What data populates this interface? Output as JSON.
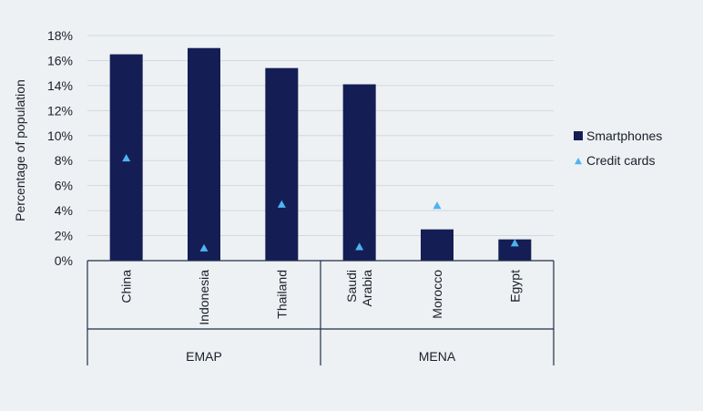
{
  "chart_data": {
    "type": "bar",
    "ylabel": "Percentage of population",
    "ylim": [
      0,
      18
    ],
    "yticks": [
      "0%",
      "2%",
      "4%",
      "6%",
      "8%",
      "10%",
      "12%",
      "14%",
      "16%",
      "18%"
    ],
    "grid": true,
    "legend_position": "right",
    "categories": [
      {
        "label": "China",
        "group": "EMAP"
      },
      {
        "label": "Indonesia",
        "group": "EMAP"
      },
      {
        "label": "Thailand",
        "group": "EMAP"
      },
      {
        "label": "Saudi Arabia",
        "group": "MENA"
      },
      {
        "label": "Morocco",
        "group": "MENA"
      },
      {
        "label": "Egypt",
        "group": "MENA"
      }
    ],
    "groups": [
      "EMAP",
      "MENA"
    ],
    "series": [
      {
        "name": "Smartphones",
        "type": "bar",
        "color": "#141e55",
        "values": [
          16.5,
          17.0,
          15.4,
          14.1,
          2.5,
          1.7
        ]
      },
      {
        "name": "Credit cards",
        "type": "marker",
        "marker": "triangle",
        "color": "#4fb3f0",
        "values": [
          8.2,
          1.0,
          4.5,
          1.1,
          4.4,
          1.4
        ]
      }
    ]
  }
}
